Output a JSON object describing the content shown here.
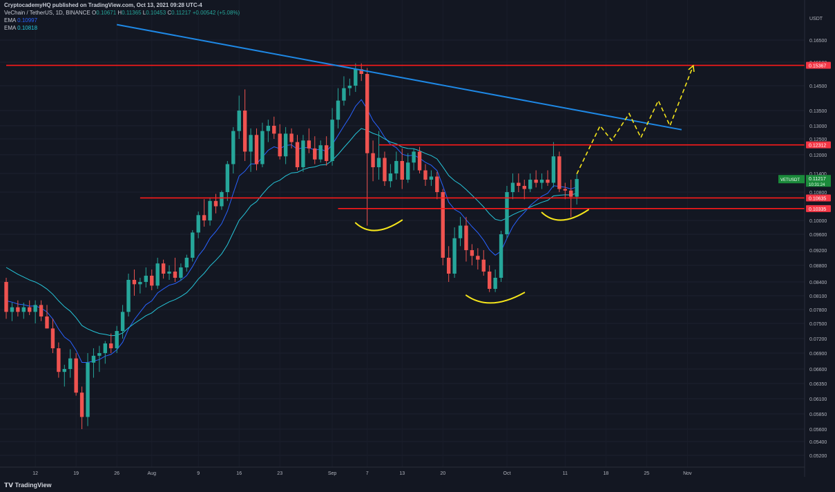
{
  "publisher": "CryptocademyHQ published on TradingView.com, Oct 13, 2021 09:28 UTC-4",
  "legend": {
    "pair": "VeChain / TetherUS, 1D, BINANCE",
    "o_label": "O",
    "o": "0.10671",
    "h_label": "H",
    "h": "0.11365",
    "l_label": "L",
    "l": "0.10453",
    "c_label": "C",
    "c": "0.11217",
    "change": "+0.00542 (+5.08%)",
    "ema1_label": "EMA",
    "ema1": "0.10997",
    "ema2_label": "EMA",
    "ema2": "0.10818"
  },
  "footer": "TradingView",
  "colors": {
    "bg": "#131722",
    "up": "#26a69a",
    "down": "#ef5350",
    "ema_fast": "#2962ff",
    "ema_slow": "#26c6da",
    "level": "#ff1a1a",
    "trend": "#1e88e5",
    "drawing": "#f5e51b"
  },
  "chart_data": {
    "type": "candlestick",
    "symbol": "VETUSDT",
    "price_scale_unit": "USDT",
    "y_ticks": [
      "0.16500",
      "0.15500",
      "0.14500",
      "0.13500",
      "0.13000",
      "0.12500",
      "0.12000",
      "0.11400",
      "0.10800",
      "0.10000",
      "0.09600",
      "0.09200",
      "0.08800",
      "0.08400",
      "0.08100",
      "0.07800",
      "0.07500",
      "0.07200",
      "0.06900",
      "0.06600",
      "0.06350",
      "0.06100",
      "0.05850",
      "0.05600",
      "0.05400",
      "0.05200"
    ],
    "x_ticks": [
      "12",
      "19",
      "26",
      "Aug",
      "9",
      "16",
      "23",
      "Sep",
      "7",
      "13",
      "20",
      "Oct",
      "11",
      "18",
      "25",
      "Nov"
    ],
    "levels": [
      {
        "label": "0.15367",
        "value": 0.15367,
        "from": "2021-07-07"
      },
      {
        "label": "0.12312",
        "value": 0.12312,
        "from": "2021-09-09"
      },
      {
        "label": "0.10635",
        "value": 0.10635,
        "from": "2021-07-30"
      },
      {
        "label": "0.10335",
        "value": 0.10335,
        "from": "2021-09-02"
      }
    ],
    "last_price": {
      "symbol": "VETUSDT",
      "price": "0.11217",
      "countdown": "10:31:24"
    },
    "candles": [
      {
        "d": "2021-07-07",
        "o": 0.084,
        "h": 0.085,
        "l": 0.076,
        "c": 0.0775
      },
      {
        "d": "2021-07-08",
        "o": 0.0775,
        "h": 0.0795,
        "l": 0.0755,
        "c": 0.0785
      },
      {
        "d": "2021-07-09",
        "o": 0.0785,
        "h": 0.08,
        "l": 0.0765,
        "c": 0.0775
      },
      {
        "d": "2021-07-10",
        "o": 0.0775,
        "h": 0.0795,
        "l": 0.076,
        "c": 0.0785
      },
      {
        "d": "2021-07-11",
        "o": 0.0785,
        "h": 0.08,
        "l": 0.0768,
        "c": 0.0775
      },
      {
        "d": "2021-07-12",
        "o": 0.0775,
        "h": 0.08,
        "l": 0.075,
        "c": 0.079
      },
      {
        "d": "2021-07-13",
        "o": 0.079,
        "h": 0.08,
        "l": 0.0755,
        "c": 0.0765
      },
      {
        "d": "2021-07-14",
        "o": 0.0765,
        "h": 0.079,
        "l": 0.074,
        "c": 0.074
      },
      {
        "d": "2021-07-15",
        "o": 0.074,
        "h": 0.076,
        "l": 0.069,
        "c": 0.07
      },
      {
        "d": "2021-07-16",
        "o": 0.07,
        "h": 0.0712,
        "l": 0.0645,
        "c": 0.0655
      },
      {
        "d": "2021-07-17",
        "o": 0.0655,
        "h": 0.0668,
        "l": 0.063,
        "c": 0.066
      },
      {
        "d": "2021-07-18",
        "o": 0.066,
        "h": 0.0698,
        "l": 0.0645,
        "c": 0.068
      },
      {
        "d": "2021-07-19",
        "o": 0.068,
        "h": 0.069,
        "l": 0.0615,
        "c": 0.062
      },
      {
        "d": "2021-07-20",
        "o": 0.062,
        "h": 0.063,
        "l": 0.056,
        "c": 0.058
      },
      {
        "d": "2021-07-21",
        "o": 0.058,
        "h": 0.069,
        "l": 0.0565,
        "c": 0.0672
      },
      {
        "d": "2021-07-22",
        "o": 0.0672,
        "h": 0.07,
        "l": 0.0645,
        "c": 0.0685
      },
      {
        "d": "2021-07-23",
        "o": 0.0685,
        "h": 0.0705,
        "l": 0.0655,
        "c": 0.069
      },
      {
        "d": "2021-07-24",
        "o": 0.069,
        "h": 0.0715,
        "l": 0.067,
        "c": 0.071
      },
      {
        "d": "2021-07-25",
        "o": 0.071,
        "h": 0.073,
        "l": 0.069,
        "c": 0.07
      },
      {
        "d": "2021-07-26",
        "o": 0.07,
        "h": 0.0745,
        "l": 0.069,
        "c": 0.0735
      },
      {
        "d": "2021-07-27",
        "o": 0.0735,
        "h": 0.079,
        "l": 0.072,
        "c": 0.0775
      },
      {
        "d": "2021-07-28",
        "o": 0.0775,
        "h": 0.086,
        "l": 0.0765,
        "c": 0.0845
      },
      {
        "d": "2021-07-29",
        "o": 0.0845,
        "h": 0.087,
        "l": 0.081,
        "c": 0.0835
      },
      {
        "d": "2021-07-30",
        "o": 0.0835,
        "h": 0.085,
        "l": 0.0815,
        "c": 0.084
      },
      {
        "d": "2021-07-31",
        "o": 0.084,
        "h": 0.0875,
        "l": 0.0828,
        "c": 0.0855
      },
      {
        "d": "2021-08-01",
        "o": 0.0855,
        "h": 0.087,
        "l": 0.0822,
        "c": 0.0832
      },
      {
        "d": "2021-08-02",
        "o": 0.0832,
        "h": 0.09,
        "l": 0.0825,
        "c": 0.0885
      },
      {
        "d": "2021-08-03",
        "o": 0.0885,
        "h": 0.0895,
        "l": 0.0848,
        "c": 0.086
      },
      {
        "d": "2021-08-04",
        "o": 0.086,
        "h": 0.088,
        "l": 0.0845,
        "c": 0.0865
      },
      {
        "d": "2021-08-05",
        "o": 0.0865,
        "h": 0.09,
        "l": 0.084,
        "c": 0.085
      },
      {
        "d": "2021-08-06",
        "o": 0.085,
        "h": 0.0885,
        "l": 0.0843,
        "c": 0.0875
      },
      {
        "d": "2021-08-07",
        "o": 0.0875,
        "h": 0.0908,
        "l": 0.0865,
        "c": 0.09
      },
      {
        "d": "2021-08-08",
        "o": 0.09,
        "h": 0.0972,
        "l": 0.089,
        "c": 0.0965
      },
      {
        "d": "2021-08-09",
        "o": 0.0965,
        "h": 0.1025,
        "l": 0.095,
        "c": 0.1015
      },
      {
        "d": "2021-08-10",
        "o": 0.1015,
        "h": 0.106,
        "l": 0.0982,
        "c": 0.1
      },
      {
        "d": "2021-08-11",
        "o": 0.1,
        "h": 0.1065,
        "l": 0.0985,
        "c": 0.1055
      },
      {
        "d": "2021-08-12",
        "o": 0.1055,
        "h": 0.1075,
        "l": 0.102,
        "c": 0.104
      },
      {
        "d": "2021-08-13",
        "o": 0.104,
        "h": 0.1085,
        "l": 0.103,
        "c": 0.108
      },
      {
        "d": "2021-08-14",
        "o": 0.108,
        "h": 0.118,
        "l": 0.1055,
        "c": 0.117
      },
      {
        "d": "2021-08-15",
        "o": 0.117,
        "h": 0.1295,
        "l": 0.114,
        "c": 0.128
      },
      {
        "d": "2021-08-16",
        "o": 0.128,
        "h": 0.141,
        "l": 0.125,
        "c": 0.135
      },
      {
        "d": "2021-08-17",
        "o": 0.135,
        "h": 0.1435,
        "l": 0.118,
        "c": 0.121
      },
      {
        "d": "2021-08-18",
        "o": 0.121,
        "h": 0.129,
        "l": 0.1145,
        "c": 0.1265
      },
      {
        "d": "2021-08-19",
        "o": 0.1265,
        "h": 0.129,
        "l": 0.115,
        "c": 0.117
      },
      {
        "d": "2021-08-20",
        "o": 0.117,
        "h": 0.131,
        "l": 0.116,
        "c": 0.128
      },
      {
        "d": "2021-08-21",
        "o": 0.128,
        "h": 0.132,
        "l": 0.124,
        "c": 0.13
      },
      {
        "d": "2021-08-22",
        "o": 0.13,
        "h": 0.133,
        "l": 0.125,
        "c": 0.127
      },
      {
        "d": "2021-08-23",
        "o": 0.127,
        "h": 0.1305,
        "l": 0.1185,
        "c": 0.1195
      },
      {
        "d": "2021-08-24",
        "o": 0.1195,
        "h": 0.1295,
        "l": 0.117,
        "c": 0.127
      },
      {
        "d": "2021-08-25",
        "o": 0.127,
        "h": 0.129,
        "l": 0.122,
        "c": 0.124
      },
      {
        "d": "2021-08-26",
        "o": 0.124,
        "h": 0.1265,
        "l": 0.115,
        "c": 0.116
      },
      {
        "d": "2021-08-27",
        "o": 0.116,
        "h": 0.1265,
        "l": 0.1145,
        "c": 0.1245
      },
      {
        "d": "2021-08-28",
        "o": 0.1245,
        "h": 0.129,
        "l": 0.1205,
        "c": 0.122
      },
      {
        "d": "2021-08-29",
        "o": 0.122,
        "h": 0.126,
        "l": 0.117,
        "c": 0.1185
      },
      {
        "d": "2021-08-30",
        "o": 0.1185,
        "h": 0.1245,
        "l": 0.1175,
        "c": 0.123
      },
      {
        "d": "2021-08-31",
        "o": 0.123,
        "h": 0.126,
        "l": 0.1165,
        "c": 0.118
      },
      {
        "d": "2021-09-01",
        "o": 0.118,
        "h": 0.136,
        "l": 0.1165,
        "c": 0.132
      },
      {
        "d": "2021-09-02",
        "o": 0.132,
        "h": 0.144,
        "l": 0.129,
        "c": 0.139
      },
      {
        "d": "2021-09-03",
        "o": 0.139,
        "h": 0.149,
        "l": 0.137,
        "c": 0.144
      },
      {
        "d": "2021-09-04",
        "o": 0.144,
        "h": 0.148,
        "l": 0.141,
        "c": 0.145
      },
      {
        "d": "2021-09-05",
        "o": 0.145,
        "h": 0.1545,
        "l": 0.1425,
        "c": 0.152
      },
      {
        "d": "2021-09-06",
        "o": 0.152,
        "h": 0.1545,
        "l": 0.147,
        "c": 0.15
      },
      {
        "d": "2021-09-07",
        "o": 0.15,
        "h": 0.1525,
        "l": 0.0985,
        "c": 0.1205
      },
      {
        "d": "2021-09-08",
        "o": 0.1205,
        "h": 0.1245,
        "l": 0.1115,
        "c": 0.116
      },
      {
        "d": "2021-09-09",
        "o": 0.116,
        "h": 0.128,
        "l": 0.112,
        "c": 0.119
      },
      {
        "d": "2021-09-10",
        "o": 0.119,
        "h": 0.121,
        "l": 0.11,
        "c": 0.1115
      },
      {
        "d": "2021-09-11",
        "o": 0.1115,
        "h": 0.117,
        "l": 0.1095,
        "c": 0.114
      },
      {
        "d": "2021-09-12",
        "o": 0.114,
        "h": 0.121,
        "l": 0.112,
        "c": 0.118
      },
      {
        "d": "2021-09-13",
        "o": 0.118,
        "h": 0.122,
        "l": 0.109,
        "c": 0.112
      },
      {
        "d": "2021-09-14",
        "o": 0.112,
        "h": 0.1205,
        "l": 0.111,
        "c": 0.1175
      },
      {
        "d": "2021-09-15",
        "o": 0.1175,
        "h": 0.122,
        "l": 0.115,
        "c": 0.121
      },
      {
        "d": "2021-09-16",
        "o": 0.121,
        "h": 0.1225,
        "l": 0.114,
        "c": 0.115
      },
      {
        "d": "2021-09-17",
        "o": 0.115,
        "h": 0.117,
        "l": 0.11,
        "c": 0.112
      },
      {
        "d": "2021-09-18",
        "o": 0.112,
        "h": 0.115,
        "l": 0.11,
        "c": 0.113
      },
      {
        "d": "2021-09-19",
        "o": 0.113,
        "h": 0.1145,
        "l": 0.106,
        "c": 0.108
      },
      {
        "d": "2021-09-20",
        "o": 0.108,
        "h": 0.109,
        "l": 0.088,
        "c": 0.09
      },
      {
        "d": "2021-09-21",
        "o": 0.09,
        "h": 0.093,
        "l": 0.084,
        "c": 0.086
      },
      {
        "d": "2021-09-22",
        "o": 0.086,
        "h": 0.098,
        "l": 0.085,
        "c": 0.095
      },
      {
        "d": "2021-09-23",
        "o": 0.095,
        "h": 0.101,
        "l": 0.093,
        "c": 0.0985
      },
      {
        "d": "2021-09-24",
        "o": 0.0985,
        "h": 0.101,
        "l": 0.089,
        "c": 0.092
      },
      {
        "d": "2021-09-25",
        "o": 0.092,
        "h": 0.0935,
        "l": 0.088,
        "c": 0.0905
      },
      {
        "d": "2021-09-26",
        "o": 0.0905,
        "h": 0.0925,
        "l": 0.087,
        "c": 0.0895
      },
      {
        "d": "2021-09-27",
        "o": 0.0895,
        "h": 0.092,
        "l": 0.0855,
        "c": 0.0865
      },
      {
        "d": "2021-09-28",
        "o": 0.0865,
        "h": 0.088,
        "l": 0.0818,
        "c": 0.0825
      },
      {
        "d": "2021-09-29",
        "o": 0.0825,
        "h": 0.087,
        "l": 0.0818,
        "c": 0.085
      },
      {
        "d": "2021-09-30",
        "o": 0.085,
        "h": 0.097,
        "l": 0.084,
        "c": 0.096
      },
      {
        "d": "2021-10-01",
        "o": 0.096,
        "h": 0.11,
        "l": 0.095,
        "c": 0.108
      },
      {
        "d": "2021-10-02",
        "o": 0.108,
        "h": 0.114,
        "l": 0.106,
        "c": 0.111
      },
      {
        "d": "2021-10-03",
        "o": 0.111,
        "h": 0.114,
        "l": 0.108,
        "c": 0.11
      },
      {
        "d": "2021-10-04",
        "o": 0.11,
        "h": 0.112,
        "l": 0.106,
        "c": 0.109
      },
      {
        "d": "2021-10-05",
        "o": 0.109,
        "h": 0.114,
        "l": 0.108,
        "c": 0.112
      },
      {
        "d": "2021-10-06",
        "o": 0.112,
        "h": 0.115,
        "l": 0.1095,
        "c": 0.111
      },
      {
        "d": "2021-10-07",
        "o": 0.111,
        "h": 0.114,
        "l": 0.109,
        "c": 0.112
      },
      {
        "d": "2021-10-08",
        "o": 0.112,
        "h": 0.115,
        "l": 0.11,
        "c": 0.111
      },
      {
        "d": "2021-10-09",
        "o": 0.111,
        "h": 0.124,
        "l": 0.1095,
        "c": 0.1195
      },
      {
        "d": "2021-10-10",
        "o": 0.1195,
        "h": 0.121,
        "l": 0.108,
        "c": 0.109
      },
      {
        "d": "2021-10-11",
        "o": 0.109,
        "h": 0.111,
        "l": 0.106,
        "c": 0.1085
      },
      {
        "d": "2021-10-12",
        "o": 0.1085,
        "h": 0.112,
        "l": 0.101,
        "c": 0.1067
      },
      {
        "d": "2021-10-13",
        "o": 0.1067,
        "h": 0.1137,
        "l": 0.1045,
        "c": 0.1122
      }
    ],
    "ema_fast_start": 0.0805,
    "ema_slow_start": 0.0885,
    "trendline": {
      "from": {
        "d": "2021-07-26",
        "v": 0.172
      },
      "to": {
        "d": "2021-10-31",
        "v": 0.1285
      }
    },
    "smiles": [
      {
        "from": "2021-09-05",
        "to": "2021-09-13",
        "low": 0.0965
      },
      {
        "from": "2021-09-24",
        "to": "2021-10-04",
        "low": 0.079
      },
      {
        "from": "2021-10-07",
        "to": "2021-10-15",
        "low": 0.0995
      }
    ],
    "projection": [
      {
        "d": "2021-10-13",
        "v": 0.1138
      },
      {
        "d": "2021-10-17",
        "v": 0.13
      },
      {
        "d": "2021-10-19",
        "v": 0.1245
      },
      {
        "d": "2021-10-22",
        "v": 0.134
      },
      {
        "d": "2021-10-24",
        "v": 0.1255
      },
      {
        "d": "2021-10-27",
        "v": 0.139
      },
      {
        "d": "2021-10-29",
        "v": 0.13
      },
      {
        "d": "2021-11-02",
        "v": 0.1535
      }
    ]
  }
}
